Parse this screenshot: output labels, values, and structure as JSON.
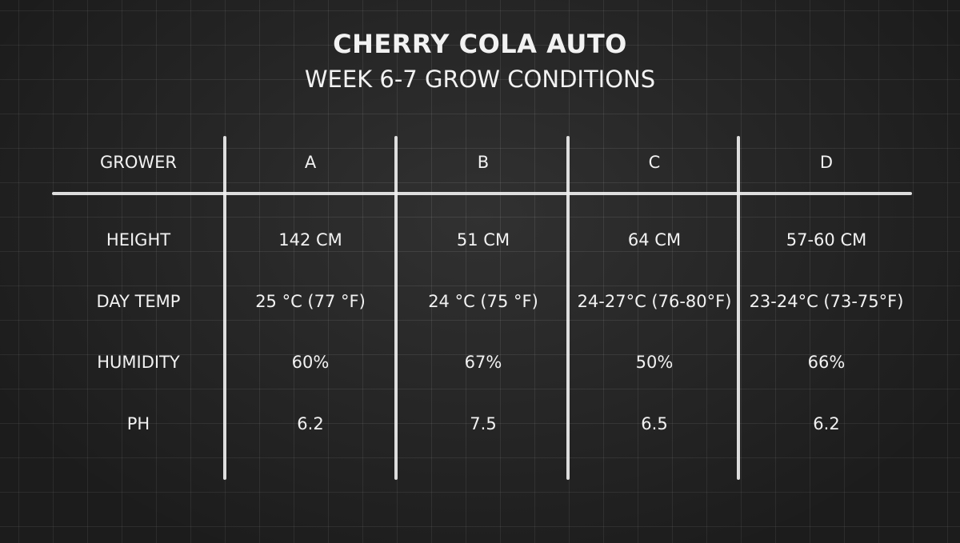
{
  "title": "CHERRY COLA AUTO",
  "subtitle": "WEEK 6-7 GROW CONDITIONS",
  "chart_data": {
    "type": "table",
    "title": "CHERRY COLA AUTO",
    "subtitle": "WEEK 6-7 GROW CONDITIONS",
    "columns": [
      "GROWER",
      "A",
      "B",
      "C",
      "D"
    ],
    "rows": [
      [
        "HEIGHT",
        "142 CM",
        "51 CM",
        "64 CM",
        "57-60 CM"
      ],
      [
        "DAY TEMP",
        "25 °C (77 °F)",
        "24 °C (75 °F)",
        "24-27°C (76-80°F)",
        "23-24°C (73-75°F)"
      ],
      [
        "HUMIDITY",
        "60%",
        "67%",
        "50%",
        "66%"
      ],
      [
        "PH",
        "6.2",
        "7.5",
        "6.5",
        "6.2"
      ]
    ]
  }
}
